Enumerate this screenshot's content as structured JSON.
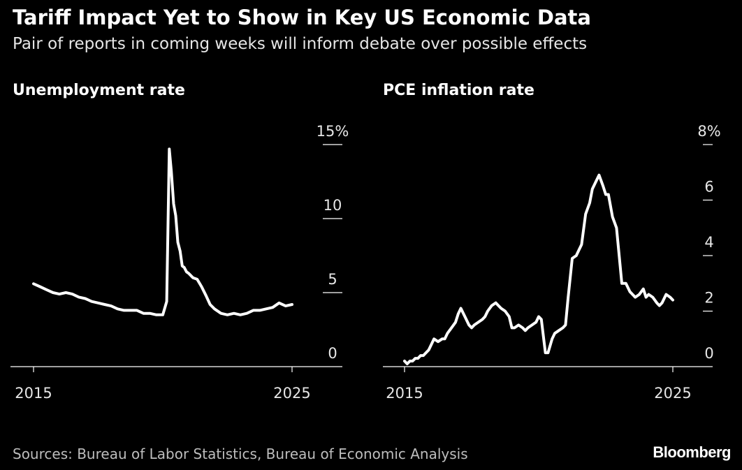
{
  "header": {
    "title": "Tariff Impact Yet to Show in Key US Economic Data",
    "subtitle": "Pair of reports in coming weeks will inform debate over possible effects"
  },
  "footer": {
    "source": "Sources: Bureau of Labor Statistics, Bureau of Economic Analysis",
    "brand": "Bloomberg"
  },
  "colors": {
    "background": "#000000",
    "line": "#ffffff",
    "axis": "#ffffff"
  },
  "chart_data": [
    {
      "type": "line",
      "title": "Unemployment rate",
      "xlabel": "",
      "ylabel": "",
      "xlim": [
        2015,
        2025
      ],
      "ylim": [
        0,
        15
      ],
      "yticks": [
        {
          "value": 0,
          "label": "0"
        },
        {
          "value": 5,
          "label": "5"
        },
        {
          "value": 10,
          "label": "10"
        },
        {
          "value": 15,
          "label": "15%"
        }
      ],
      "xticks": [
        {
          "value": 2015,
          "label": "2015"
        },
        {
          "value": 2025,
          "label": "2025"
        }
      ],
      "grid": false,
      "x": [
        2015.0,
        2015.25,
        2015.5,
        2015.75,
        2016.0,
        2016.25,
        2016.5,
        2016.75,
        2017.0,
        2017.25,
        2017.5,
        2017.75,
        2018.0,
        2018.25,
        2018.5,
        2018.75,
        2019.0,
        2019.25,
        2019.5,
        2019.75,
        2020.0,
        2020.15,
        2020.25,
        2020.33,
        2020.42,
        2020.5,
        2020.58,
        2020.67,
        2020.75,
        2020.83,
        2020.92,
        2021.0,
        2021.17,
        2021.33,
        2021.5,
        2021.67,
        2021.83,
        2022.0,
        2022.25,
        2022.5,
        2022.75,
        2023.0,
        2023.25,
        2023.5,
        2023.75,
        2024.0,
        2024.25,
        2024.5,
        2024.75,
        2025.0
      ],
      "values": [
        5.6,
        5.4,
        5.2,
        5.0,
        4.9,
        5.0,
        4.9,
        4.7,
        4.6,
        4.4,
        4.3,
        4.2,
        4.1,
        3.9,
        3.8,
        3.8,
        3.8,
        3.6,
        3.6,
        3.5,
        3.5,
        4.4,
        14.7,
        13.2,
        11.0,
        10.2,
        8.4,
        7.8,
        6.8,
        6.7,
        6.4,
        6.3,
        6.0,
        5.9,
        5.4,
        4.8,
        4.2,
        3.9,
        3.6,
        3.5,
        3.6,
        3.5,
        3.6,
        3.8,
        3.8,
        3.9,
        4.0,
        4.3,
        4.1,
        4.2
      ],
      "series": [
        {
          "name": "",
          "values_ref": "values"
        }
      ]
    },
    {
      "type": "line",
      "title": "PCE inflation rate",
      "xlabel": "",
      "ylabel": "",
      "xlim": [
        2015,
        2025
      ],
      "ylim": [
        0,
        8
      ],
      "yticks": [
        {
          "value": 0,
          "label": "0"
        },
        {
          "value": 2,
          "label": "2"
        },
        {
          "value": 4,
          "label": "4"
        },
        {
          "value": 6,
          "label": "6"
        },
        {
          "value": 8,
          "label": "8%"
        }
      ],
      "xticks": [
        {
          "value": 2015,
          "label": "2015"
        },
        {
          "value": 2025,
          "label": "2025"
        }
      ],
      "grid": false,
      "x": [
        2015.0,
        2015.1,
        2015.2,
        2015.3,
        2015.4,
        2015.5,
        2015.6,
        2015.7,
        2015.8,
        2015.9,
        2016.0,
        2016.1,
        2016.25,
        2016.4,
        2016.5,
        2016.6,
        2016.75,
        2016.9,
        2017.0,
        2017.1,
        2017.25,
        2017.4,
        2017.5,
        2017.6,
        2017.75,
        2017.9,
        2018.0,
        2018.1,
        2018.25,
        2018.4,
        2018.5,
        2018.6,
        2018.75,
        2018.9,
        2019.0,
        2019.1,
        2019.25,
        2019.4,
        2019.5,
        2019.6,
        2019.75,
        2019.9,
        2020.0,
        2020.1,
        2020.25,
        2020.35,
        2020.5,
        2020.6,
        2020.75,
        2020.9,
        2021.0,
        2021.1,
        2021.25,
        2021.4,
        2021.5,
        2021.6,
        2021.75,
        2021.9,
        2022.0,
        2022.1,
        2022.25,
        2022.4,
        2022.5,
        2022.6,
        2022.75,
        2022.9,
        2023.0,
        2023.1,
        2023.25,
        2023.4,
        2023.5,
        2023.6,
        2023.75,
        2023.9,
        2024.0,
        2024.1,
        2024.25,
        2024.4,
        2024.5,
        2024.6,
        2024.75,
        2024.9,
        2025.0
      ],
      "values": [
        0.2,
        0.1,
        0.2,
        0.2,
        0.3,
        0.3,
        0.4,
        0.4,
        0.5,
        0.6,
        0.8,
        1.0,
        0.9,
        1.0,
        1.0,
        1.2,
        1.4,
        1.6,
        1.9,
        2.1,
        1.8,
        1.5,
        1.4,
        1.5,
        1.6,
        1.7,
        1.8,
        2.0,
        2.2,
        2.3,
        2.2,
        2.1,
        2.0,
        1.8,
        1.4,
        1.4,
        1.5,
        1.4,
        1.3,
        1.4,
        1.5,
        1.6,
        1.8,
        1.7,
        0.5,
        0.5,
        1.0,
        1.2,
        1.3,
        1.4,
        1.5,
        2.5,
        3.9,
        4.0,
        4.2,
        4.4,
        5.5,
        5.9,
        6.4,
        6.6,
        6.9,
        6.5,
        6.2,
        6.2,
        5.4,
        5.0,
        4.0,
        3.0,
        3.0,
        2.7,
        2.6,
        2.5,
        2.6,
        2.8,
        2.5,
        2.6,
        2.5,
        2.3,
        2.2,
        2.3,
        2.6,
        2.5,
        2.4
      ]
    }
  ]
}
